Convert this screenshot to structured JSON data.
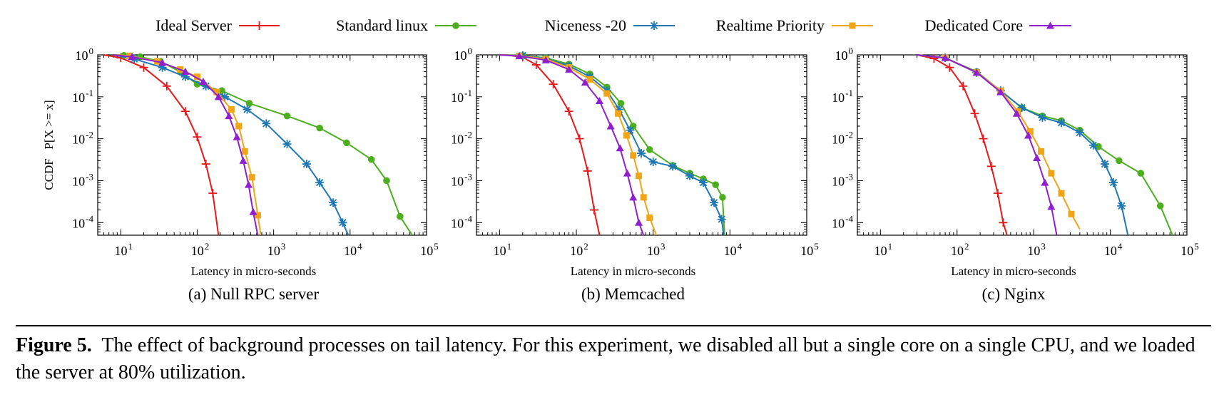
{
  "legend": [
    {
      "name": "Ideal Server",
      "color": "#e41a1c",
      "marker": "plus"
    },
    {
      "name": "Standard linux",
      "color": "#4daf1f",
      "marker": "circle"
    },
    {
      "name": "Niceness -20",
      "color": "#1f78b4",
      "marker": "star"
    },
    {
      "name": "Realtime Priority",
      "color": "#f0a418",
      "marker": "square"
    },
    {
      "name": "Dedicated Core",
      "color": "#8f1fcf",
      "marker": "triangle"
    }
  ],
  "figure_caption": {
    "label": "Figure 5.",
    "text": "The effect of background processes on tail latency. For this experiment, we disabled all but a single core on a single CPU, and we loaded the server at 80% utilization."
  },
  "chart_data": [
    {
      "type": "line",
      "subcaption": "(a) Null RPC server",
      "xlabel": "Latency in micro-seconds",
      "ylabel": "CCDF   P[X >= x]",
      "xscale": "log",
      "yscale": "log",
      "xlim": [
        5,
        100000
      ],
      "ylim": [
        5e-05,
        1
      ],
      "xticks": [
        {
          "v": 10,
          "t": "1"
        },
        {
          "v": 100,
          "t": "2"
        },
        {
          "v": 1000,
          "t": "3"
        },
        {
          "v": 10000,
          "t": "4"
        },
        {
          "v": 100000,
          "t": "5"
        }
      ],
      "yticks": [
        {
          "v": 1,
          "t": "0"
        },
        {
          "v": 0.1,
          "t": "-1"
        },
        {
          "v": 0.01,
          "t": "-2"
        },
        {
          "v": 0.001,
          "t": "-3"
        },
        {
          "v": 0.0001,
          "t": "-4"
        }
      ],
      "series": [
        {
          "name": "Ideal Server",
          "x": [
            6,
            10,
            20,
            40,
            70,
            100,
            130,
            160,
            190
          ],
          "y": [
            1,
            0.85,
            0.5,
            0.18,
            0.045,
            0.011,
            0.0025,
            0.0005,
            5e-05
          ]
        },
        {
          "name": "Standard linux",
          "x": [
            8,
            11,
            18,
            33,
            62,
            100,
            210,
            480,
            1500,
            4000,
            9000,
            19000,
            30000,
            45000,
            65000
          ],
          "y": [
            1,
            0.97,
            0.9,
            0.7,
            0.38,
            0.2,
            0.14,
            0.07,
            0.035,
            0.018,
            0.008,
            0.0032,
            0.001,
            0.00014,
            5e-05
          ]
        },
        {
          "name": "Niceness -20",
          "x": [
            8,
            15,
            35,
            70,
            130,
            230,
            450,
            800,
            1500,
            2700,
            4000,
            6000,
            8000,
            9500
          ],
          "y": [
            1,
            0.8,
            0.5,
            0.3,
            0.18,
            0.1,
            0.05,
            0.023,
            0.0075,
            0.0025,
            0.0009,
            0.0003,
            0.0001,
            5e-05
          ]
        },
        {
          "name": "Realtime Priority",
          "x": [
            8,
            13,
            30,
            60,
            100,
            180,
            280,
            350,
            420,
            520,
            620,
            680
          ],
          "y": [
            1,
            0.95,
            0.7,
            0.45,
            0.3,
            0.13,
            0.05,
            0.02,
            0.005,
            0.0012,
            0.00015,
            5e-05
          ]
        },
        {
          "name": "Dedicated Core",
          "x": [
            8,
            14,
            35,
            70,
            120,
            190,
            260,
            330,
            400,
            470,
            540,
            620
          ],
          "y": [
            1,
            0.9,
            0.65,
            0.4,
            0.23,
            0.1,
            0.035,
            0.011,
            0.003,
            0.0008,
            0.00018,
            5e-05
          ]
        }
      ]
    },
    {
      "type": "line",
      "subcaption": "(b) Memcached",
      "xlabel": "Latency in micro-seconds",
      "ylabel": "",
      "xscale": "log",
      "yscale": "log",
      "xlim": [
        5,
        100000
      ],
      "ylim": [
        5e-05,
        1
      ],
      "xticks": [
        {
          "v": 10,
          "t": "1"
        },
        {
          "v": 100,
          "t": "2"
        },
        {
          "v": 1000,
          "t": "3"
        },
        {
          "v": 10000,
          "t": "4"
        },
        {
          "v": 100000,
          "t": "5"
        }
      ],
      "yticks": [
        {
          "v": 1,
          "t": "0"
        },
        {
          "v": 0.1,
          "t": "-1"
        },
        {
          "v": 0.01,
          "t": "-2"
        },
        {
          "v": 0.001,
          "t": "-3"
        },
        {
          "v": 0.0001,
          "t": "-4"
        }
      ],
      "series": [
        {
          "name": "Ideal Server",
          "x": [
            12,
            20,
            30,
            50,
            80,
            110,
            140,
            170,
            200
          ],
          "y": [
            1,
            0.88,
            0.58,
            0.2,
            0.045,
            0.01,
            0.0017,
            0.0002,
            5e-05
          ]
        },
        {
          "name": "Standard linux",
          "x": [
            10,
            20,
            40,
            80,
            150,
            250,
            380,
            550,
            900,
            1800,
            3000,
            4500,
            6500,
            8000,
            8500
          ],
          "y": [
            1,
            0.97,
            0.85,
            0.6,
            0.35,
            0.17,
            0.07,
            0.02,
            0.0055,
            0.0023,
            0.0015,
            0.0011,
            0.0008,
            0.0004,
            5e-05
          ]
        },
        {
          "name": "Niceness -20",
          "x": [
            10,
            20,
            40,
            80,
            150,
            250,
            360,
            500,
            700,
            1000,
            1800,
            3000,
            4500,
            6200,
            7800,
            8300
          ],
          "y": [
            1,
            0.96,
            0.82,
            0.55,
            0.3,
            0.14,
            0.05,
            0.016,
            0.0045,
            0.0028,
            0.0022,
            0.0013,
            0.0009,
            0.0003,
            0.00012,
            5e-05
          ]
        },
        {
          "name": "Realtime Priority",
          "x": [
            10,
            18,
            40,
            80,
            150,
            250,
            350,
            450,
            550,
            650,
            750,
            900,
            1100
          ],
          "y": [
            1,
            0.95,
            0.8,
            0.5,
            0.26,
            0.12,
            0.04,
            0.012,
            0.004,
            0.0013,
            0.0004,
            0.00013,
            5e-05
          ]
        },
        {
          "name": "Dedicated Core",
          "x": [
            10,
            18,
            40,
            80,
            130,
            200,
            280,
            370,
            460,
            550,
            650,
            750
          ],
          "y": [
            1,
            0.94,
            0.75,
            0.45,
            0.22,
            0.08,
            0.02,
            0.006,
            0.0015,
            0.0004,
            0.0001,
            5e-05
          ]
        }
      ]
    },
    {
      "type": "line",
      "subcaption": "(c) Nginx",
      "xlabel": "Latency in micro-seconds",
      "ylabel": "",
      "xscale": "log",
      "yscale": "log",
      "xlim": [
        5,
        100000
      ],
      "ylim": [
        5e-05,
        1
      ],
      "xticks": [
        {
          "v": 10,
          "t": "1"
        },
        {
          "v": 100,
          "t": "2"
        },
        {
          "v": 1000,
          "t": "3"
        },
        {
          "v": 10000,
          "t": "4"
        },
        {
          "v": 100000,
          "t": "5"
        }
      ],
      "yticks": [
        {
          "v": 1,
          "t": "0"
        },
        {
          "v": 0.1,
          "t": "-1"
        },
        {
          "v": 0.01,
          "t": "-2"
        },
        {
          "v": 0.001,
          "t": "-3"
        },
        {
          "v": 0.0001,
          "t": "-4"
        }
      ],
      "series": [
        {
          "name": "Ideal Server",
          "x": [
            30,
            50,
            80,
            120,
            170,
            220,
            280,
            340,
            400,
            450
          ],
          "y": [
            1,
            0.82,
            0.5,
            0.18,
            0.04,
            0.01,
            0.0022,
            0.0005,
            0.0001,
            5e-05
          ]
        },
        {
          "name": "Standard linux",
          "x": [
            30,
            70,
            180,
            370,
            700,
            1300,
            2300,
            4000,
            7000,
            13000,
            25000,
            45000,
            65000
          ],
          "y": [
            1,
            0.85,
            0.4,
            0.14,
            0.055,
            0.035,
            0.027,
            0.016,
            0.0065,
            0.003,
            0.0015,
            0.00025,
            5e-05
          ]
        },
        {
          "name": "Niceness -20",
          "x": [
            30,
            70,
            180,
            370,
            700,
            1300,
            2300,
            4000,
            6000,
            8500,
            11000,
            14000,
            17000
          ],
          "y": [
            1,
            0.85,
            0.38,
            0.14,
            0.055,
            0.032,
            0.024,
            0.014,
            0.007,
            0.0025,
            0.0009,
            0.00025,
            5e-05
          ]
        },
        {
          "name": "Realtime Priority",
          "x": [
            30,
            70,
            180,
            370,
            620,
            900,
            1250,
            1700,
            2300,
            3100,
            4000
          ],
          "y": [
            1,
            0.85,
            0.38,
            0.14,
            0.045,
            0.015,
            0.005,
            0.0015,
            0.0005,
            0.00016,
            7e-05
          ]
        },
        {
          "name": "Dedicated Core",
          "x": [
            30,
            70,
            180,
            370,
            600,
            850,
            1100,
            1400,
            1700,
            2000
          ],
          "y": [
            1,
            0.85,
            0.38,
            0.13,
            0.04,
            0.012,
            0.0035,
            0.0009,
            0.00024,
            5e-05
          ]
        }
      ]
    }
  ]
}
